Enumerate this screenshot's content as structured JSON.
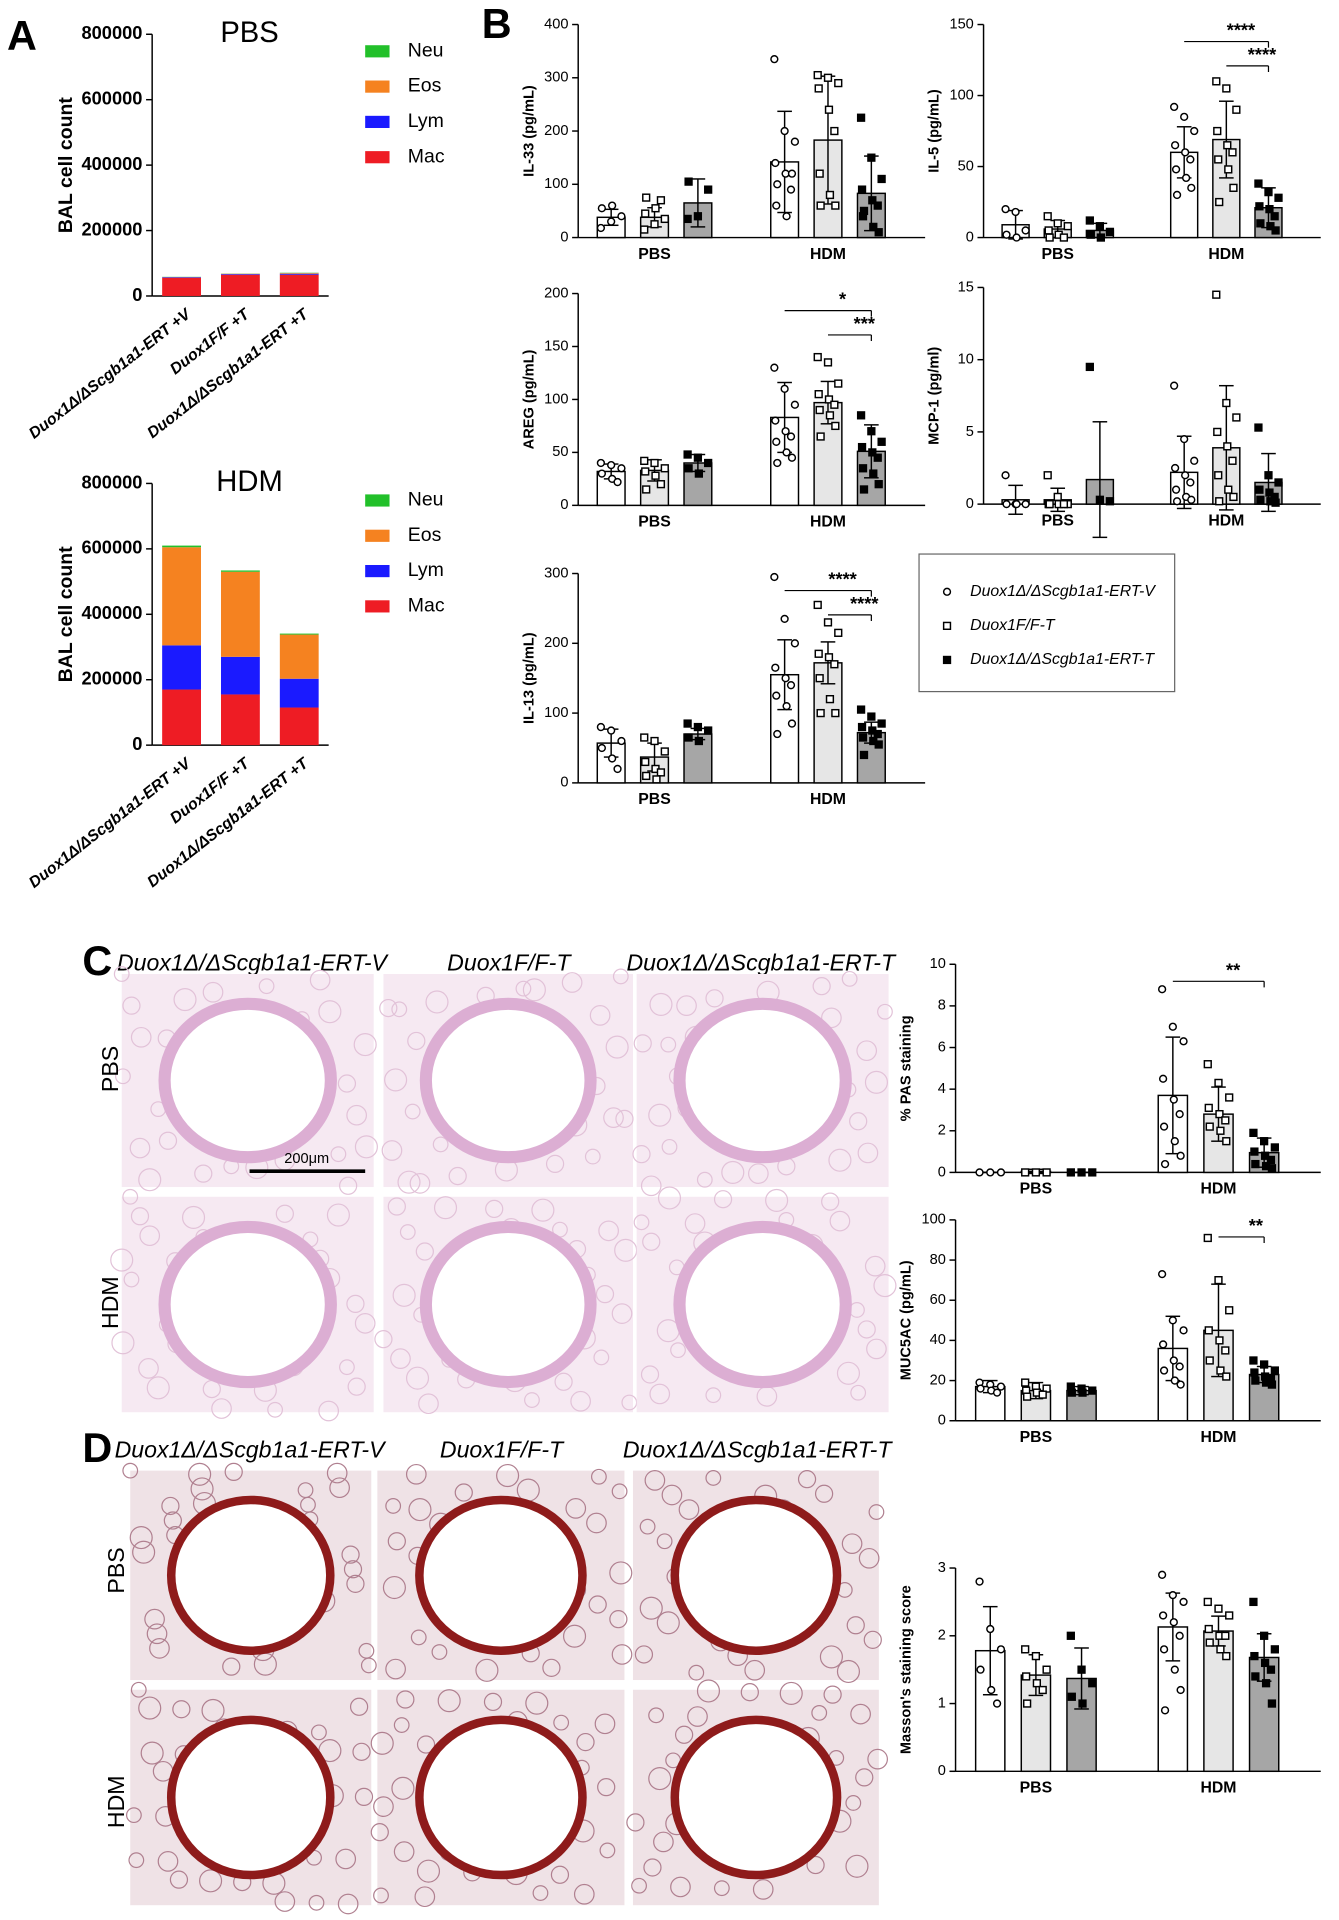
{
  "panel_labels": [
    "A",
    "B",
    "C",
    "D"
  ],
  "chart_legend": {
    "series": [
      {
        "name": "Duox1Δ/ΔScgb1a1-ERT-V",
        "fill": "#ffffff",
        "marker": "circle-open"
      },
      {
        "name": "Duox1F/F-T",
        "fill": "#e6e6e6",
        "marker": "square-open"
      },
      {
        "name": "Duox1Δ/ΔScgb1a1-ERT-T",
        "fill": "#a6a6a6",
        "marker": "square-filled"
      }
    ]
  },
  "chart_data": [
    {
      "type": "stacked_bar",
      "title": "PBS",
      "y_label": "BAL cell count",
      "categories": [
        "Duox1Δ/ΔScgb1a1-ERT +V",
        "Duox1F/F +T",
        "Duox1Δ/ΔScgb1a1-ERT +T"
      ],
      "series": [
        {
          "name": "Mac",
          "color": "#ee1c24",
          "values": [
            55000,
            65000,
            65000
          ]
        },
        {
          "name": "Lym",
          "color": "#1a1aff",
          "values": [
            2000,
            2000,
            3000
          ]
        },
        {
          "name": "Eos",
          "color": "#f58220",
          "values": [
            1000,
            1000,
            2000
          ]
        },
        {
          "name": "Neu",
          "color": "#22c02a",
          "values": [
            500,
            500,
            1000
          ]
        }
      ],
      "ylim": [
        0,
        800000
      ],
      "yticks": [
        0,
        200000,
        400000,
        600000,
        800000
      ]
    },
    {
      "type": "stacked_bar",
      "title": "HDM",
      "y_label": "BAL cell count",
      "categories": [
        "Duox1Δ/ΔScgb1a1-ERT +V",
        "Duox1F/F +T",
        "Duox1Δ/ΔScgb1a1-ERT +T"
      ],
      "series": [
        {
          "name": "Mac",
          "color": "#ee1c24",
          "values": [
            170000,
            155000,
            115000
          ]
        },
        {
          "name": "Lym",
          "color": "#1a1aff",
          "values": [
            135000,
            115000,
            88000
          ]
        },
        {
          "name": "Eos",
          "color": "#f58220",
          "values": [
            300000,
            260000,
            135000
          ]
        },
        {
          "name": "Neu",
          "color": "#22c02a",
          "values": [
            5000,
            4000,
            3000
          ]
        }
      ],
      "ylim": [
        0,
        800000
      ],
      "yticks": [
        0,
        200000,
        400000,
        600000,
        800000
      ]
    },
    {
      "type": "bar",
      "y_label": "IL-33 (pg/mL)",
      "categories": [
        "PBS",
        "HDM"
      ],
      "ylim": [
        0,
        400
      ],
      "yticks": [
        0,
        100,
        200,
        300,
        400
      ],
      "series": [
        {
          "values": [
            38,
            142
          ],
          "errors": [
            15,
            95
          ],
          "points": [
            [
              18,
              30,
              40,
              55,
              60
            ],
            [
              335,
              200,
              180,
              140,
              120,
              90,
              60,
              40,
              120,
              100
            ]
          ]
        },
        {
          "values": [
            38,
            183
          ],
          "errors": [
            18,
            120
          ],
          "points": [
            [
              15,
              25,
              35,
              45,
              55,
              70,
              75
            ],
            [
              305,
              300,
              290,
              280,
              240,
              200,
              120,
              80,
              60,
              60
            ]
          ]
        },
        {
          "values": [
            65,
            83
          ],
          "errors": [
            45,
            70
          ],
          "points": [
            [
              35,
              40,
              90,
              105
            ],
            [
              225,
              150,
              110,
              90,
              70,
              60,
              40,
              20,
              10,
              50
            ]
          ]
        }
      ],
      "significance": []
    },
    {
      "type": "bar",
      "y_label": "IL-5 (pg/mL)",
      "categories": [
        "PBS",
        "HDM"
      ],
      "ylim": [
        0,
        150
      ],
      "yticks": [
        0,
        50,
        100,
        150
      ],
      "series": [
        {
          "values": [
            9,
            60
          ],
          "errors": [
            10,
            18
          ],
          "points": [
            [
              20,
              18,
              5,
              2,
              0
            ],
            [
              92,
              85,
              75,
              65,
              60,
              55,
              48,
              42,
              35,
              30
            ]
          ]
        },
        {
          "values": [
            6,
            69
          ],
          "errors": [
            6,
            27
          ],
          "points": [
            [
              15,
              10,
              8,
              5,
              2,
              0,
              0
            ],
            [
              110,
              105,
              90,
              75,
              65,
              60,
              55,
              48,
              35,
              25
            ]
          ]
        },
        {
          "values": [
            5,
            21
          ],
          "errors": [
            5,
            14
          ],
          "points": [
            [
              12,
              8,
              4,
              2,
              0
            ],
            [
              38,
              32,
              28,
              22,
              20,
              15,
              10,
              8,
              5
            ]
          ]
        }
      ],
      "significance": [
        {
          "group": 1,
          "between": [
            0,
            2
          ],
          "label": "****"
        },
        {
          "group": 1,
          "between": [
            1,
            2
          ],
          "label": "****"
        }
      ]
    },
    {
      "type": "bar",
      "y_label": "AREG (pg/mL)",
      "categories": [
        "PBS",
        "HDM"
      ],
      "ylim": [
        0,
        200
      ],
      "yticks": [
        0,
        50,
        100,
        150,
        200
      ],
      "series": [
        {
          "values": [
            32,
            83
          ],
          "errors": [
            7,
            33
          ],
          "points": [
            [
              40,
              38,
              35,
              30,
              25,
              22
            ],
            [
              130,
              110,
              95,
              80,
              70,
              65,
              60,
              50,
              45,
              40
            ]
          ]
        },
        {
          "values": [
            33,
            97
          ],
          "errors": [
            10,
            20
          ],
          "points": [
            [
              42,
              40,
              35,
              32,
              28,
              20,
              15
            ],
            [
              140,
              135,
              115,
              105,
              100,
              95,
              90,
              85,
              75,
              65
            ]
          ]
        },
        {
          "values": [
            40,
            51
          ],
          "errors": [
            8,
            25
          ],
          "points": [
            [
              48,
              45,
              40,
              35,
              30
            ],
            [
              85,
              70,
              60,
              55,
              50,
              45,
              35,
              30,
              20,
              15
            ]
          ]
        }
      ],
      "significance": [
        {
          "group": 1,
          "between": [
            0,
            2
          ],
          "label": "*"
        },
        {
          "group": 1,
          "between": [
            1,
            2
          ],
          "label": "***"
        }
      ]
    },
    {
      "type": "bar",
      "y_label": "MCP-1 (pg/ml)",
      "categories": [
        "PBS",
        "HDM"
      ],
      "ylim": [
        0,
        15
      ],
      "yticks": [
        0,
        5,
        10,
        15
      ],
      "series": [
        {
          "values": [
            0.3,
            2.2
          ],
          "errors": [
            1,
            2.5
          ],
          "points": [
            [
              2,
              0,
              0,
              0,
              0
            ],
            [
              8.2,
              4.5,
              3,
              2.5,
              2,
              1.5,
              1,
              0.5,
              0.3,
              0.2
            ]
          ]
        },
        {
          "values": [
            0.3,
            3.9
          ],
          "errors": [
            0.8,
            4.3
          ],
          "points": [
            [
              2,
              0.5,
              0,
              0,
              0,
              0,
              0
            ],
            [
              14.5,
              7,
              6,
              5,
              4,
              3,
              2,
              1,
              0.5,
              0.2
            ]
          ]
        },
        {
          "values": [
            1.7,
            1.5
          ],
          "errors": [
            4,
            2
          ],
          "points": [
            [
              9.5,
              0.3,
              0.2
            ],
            [
              5.3,
              2,
              1.5,
              1,
              0.8,
              0.5,
              0.3,
              0.2,
              0.1
            ]
          ]
        }
      ],
      "significance": []
    },
    {
      "type": "bar",
      "y_label": "IL-13 (pg/mL)",
      "categories": [
        "PBS",
        "HDM"
      ],
      "ylim": [
        0,
        300
      ],
      "yticks": [
        0,
        100,
        200,
        300
      ],
      "series": [
        {
          "values": [
            57,
            155
          ],
          "errors": [
            20,
            50
          ],
          "points": [
            [
              80,
              75,
              60,
              50,
              35,
              20
            ],
            [
              295,
              235,
              200,
              165,
              150,
              140,
              125,
              110,
              85,
              70
            ]
          ]
        },
        {
          "values": [
            37,
            172
          ],
          "errors": [
            20,
            30
          ],
          "points": [
            [
              65,
              60,
              45,
              30,
              20,
              15,
              10,
              5
            ],
            [
              255,
              230,
              215,
              185,
              180,
              170,
              150,
              120,
              100,
              100
            ]
          ]
        },
        {
          "values": [
            70,
            72
          ],
          "errors": [
            8,
            15
          ],
          "points": [
            [
              85,
              80,
              75,
              65,
              60
            ],
            [
              105,
              95,
              85,
              80,
              75,
              70,
              65,
              60,
              55,
              40
            ]
          ]
        }
      ],
      "significance": [
        {
          "group": 1,
          "between": [
            0,
            2
          ],
          "label": "****"
        },
        {
          "group": 1,
          "between": [
            1,
            2
          ],
          "label": "****"
        }
      ]
    },
    {
      "type": "bar",
      "y_label": "% PAS staining",
      "categories": [
        "PBS",
        "HDM"
      ],
      "ylim": [
        0,
        10
      ],
      "yticks": [
        0,
        2,
        4,
        6,
        8,
        10
      ],
      "series": [
        {
          "values": [
            0,
            3.7
          ],
          "errors": [
            0,
            2.8
          ],
          "points": [
            [
              0,
              0,
              0
            ],
            [
              8.8,
              7,
              6.3,
              4.5,
              3.5,
              2.8,
              2.2,
              1.5,
              0.8,
              0.4
            ]
          ]
        },
        {
          "values": [
            0.05,
            2.8
          ],
          "errors": [
            0.1,
            1.3
          ],
          "points": [
            [
              0,
              0,
              0
            ],
            [
              5.2,
              4.3,
              3.6,
              3.1,
              2.8,
              2.5,
              2.2,
              2,
              1.5
            ]
          ]
        },
        {
          "values": [
            0,
            0.95
          ],
          "errors": [
            0,
            0.7
          ],
          "points": [
            [
              0,
              0,
              0
            ],
            [
              1.9,
              1.5,
              1.2,
              1,
              0.8,
              0.6,
              0.4,
              0.3,
              0.2
            ]
          ]
        }
      ],
      "significance": [
        {
          "group": 1,
          "between": [
            0,
            2
          ],
          "label": "**"
        }
      ]
    },
    {
      "type": "bar",
      "y_label": "MUC5AC (pg/mL)",
      "categories": [
        "PBS",
        "HDM"
      ],
      "ylim": [
        0,
        100
      ],
      "yticks": [
        0,
        20,
        40,
        60,
        80,
        100
      ],
      "series": [
        {
          "values": [
            17,
            36
          ],
          "errors": [
            3,
            16
          ],
          "points": [
            [
              19,
              18,
              17,
              16,
              15,
              14
            ],
            [
              73,
              50,
              45,
              38,
              30,
              27,
              25,
              20,
              18
            ]
          ]
        },
        {
          "values": [
            15,
            45
          ],
          "errors": [
            4,
            23
          ],
          "points": [
            [
              19,
              17,
              16,
              15,
              14,
              13,
              12
            ],
            [
              91,
              70,
              55,
              45,
              40,
              35,
              30,
              25,
              22
            ]
          ]
        },
        {
          "values": [
            15,
            23
          ],
          "errors": [
            2,
            4
          ],
          "points": [
            [
              17,
              16,
              15,
              14,
              14
            ],
            [
              30,
              28,
              25,
              24,
              22,
              21,
              20,
              19,
              18
            ]
          ]
        }
      ],
      "significance": [
        {
          "group": 1,
          "between": [
            1,
            2
          ],
          "label": "**"
        }
      ]
    },
    {
      "type": "bar",
      "y_label": "Masson's staining score",
      "categories": [
        "PBS",
        "HDM"
      ],
      "ylim": [
        0,
        3
      ],
      "yticks": [
        0,
        1,
        2,
        3
      ],
      "series": [
        {
          "values": [
            1.78,
            2.13
          ],
          "errors": [
            0.65,
            0.5
          ],
          "points": [
            [
              2.8,
              2.1,
              1.8,
              1.5,
              1.2,
              1.0
            ],
            [
              2.9,
              2.6,
              2.5,
              2.3,
              2.2,
              2.0,
              1.8,
              1.5,
              1.2,
              0.9
            ]
          ]
        },
        {
          "values": [
            1.42,
            2.07
          ],
          "errors": [
            0.3,
            0.22
          ],
          "points": [
            [
              1.8,
              1.7,
              1.5,
              1.4,
              1.3,
              1.2,
              1.0
            ],
            [
              2.5,
              2.4,
              2.3,
              2.1,
              2.0,
              2.0,
              1.9,
              1.8,
              1.7
            ]
          ]
        },
        {
          "values": [
            1.37,
            1.68
          ],
          "errors": [
            0.45,
            0.35
          ],
          "points": [
            [
              2.0,
              1.5,
              1.3,
              1.1,
              1.0
            ],
            [
              2.5,
              2.0,
              1.8,
              1.7,
              1.6,
              1.5,
              1.4,
              1.3,
              1.0
            ]
          ]
        }
      ],
      "significance": []
    }
  ],
  "micrographs": [
    {
      "columns": [
        "Duox1Δ/ΔScgb1a1-ERT-V",
        "Duox1F/F-T",
        "Duox1Δ/ΔScgb1a1-ERT-T"
      ],
      "rows": [
        "PBS",
        "HDM"
      ],
      "scale_bar": "200μm"
    },
    {
      "columns": [
        "Duox1Δ/ΔScgb1a1-ERT-V",
        "Duox1F/F-T",
        "Duox1Δ/ΔScgb1a1-ERT-T"
      ],
      "rows": [
        "PBS",
        "HDM"
      ]
    }
  ]
}
